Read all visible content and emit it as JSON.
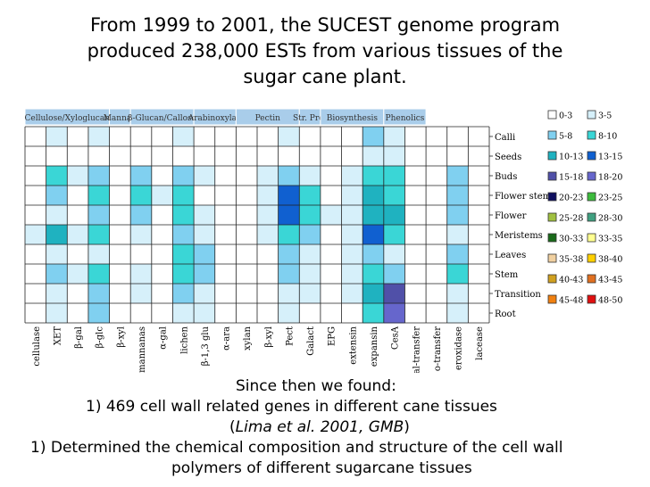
{
  "title_lines": [
    "From 1999 to 2001, the SUCEST genome program",
    "produced 238,000 ESTs from various tissues of the",
    "sugar cane plant."
  ],
  "chart_data": {
    "type": "heatmap",
    "categories_header": [
      {
        "label": "Cellulose/Xyloglucan",
        "span": 4
      },
      {
        "label": "Mannan",
        "span": 1
      },
      {
        "label": "β-Glucan/Callose",
        "span": 3
      },
      {
        "label": "Arabinoxylan",
        "span": 2
      },
      {
        "label": "Pectin",
        "span": 3
      },
      {
        "label": "Str. Prot",
        "span": 1
      },
      {
        "label": "Biosynthesis",
        "span": 3
      },
      {
        "label": "Phenolics",
        "span": 2
      }
    ],
    "x": [
      "cellulase",
      "XET",
      "β-gal",
      "β-glc",
      "β-xyl",
      "mannanas",
      "α-gal",
      "lichen",
      "β-1,3 glu",
      "α-ara",
      "xylan",
      "β-xyl",
      "Pect",
      "Galact",
      "EPG",
      "extensin",
      "expansin",
      "CesA",
      "al-transfer",
      "o-transfer",
      "eroxidase",
      "lacease"
    ],
    "y": [
      "Calli",
      "Seeds",
      "Buds",
      "Flower stem",
      "Flower",
      "Meristems",
      "Leaves",
      "Stem",
      "Transition",
      "Root"
    ],
    "legend": [
      {
        "label": "0-3",
        "color": "#ffffff"
      },
      {
        "label": "3-5",
        "color": "#d6f0fa"
      },
      {
        "label": "5-8",
        "color": "#80d0f0"
      },
      {
        "label": "8-10",
        "color": "#3ad6d6"
      },
      {
        "label": "10-13",
        "color": "#1fb2c0"
      },
      {
        "label": "13-15",
        "color": "#1060d0"
      },
      {
        "label": "15-18",
        "color": "#5050a8"
      },
      {
        "label": "18-20",
        "color": "#6666cc"
      },
      {
        "label": "20-23",
        "color": "#101060"
      },
      {
        "label": "23-25",
        "color": "#3dbb3d"
      },
      {
        "label": "25-28",
        "color": "#a0c040"
      },
      {
        "label": "28-30",
        "color": "#40a080"
      },
      {
        "label": "30-33",
        "color": "#1a6a1a"
      },
      {
        "label": "33-35",
        "color": "#ffff90"
      },
      {
        "label": "35-38",
        "color": "#f0d0a0"
      },
      {
        "label": "38-40",
        "color": "#ffd000"
      },
      {
        "label": "40-43",
        "color": "#d0a020"
      },
      {
        "label": "43-45",
        "color": "#e07020"
      },
      {
        "label": "45-48",
        "color": "#f08010"
      },
      {
        "label": "48-50",
        "color": "#e01010"
      }
    ],
    "values": [
      [
        2,
        4,
        3,
        4,
        1,
        3,
        2,
        4,
        3,
        1,
        1,
        2,
        4,
        3,
        2,
        3,
        6,
        5,
        2,
        2,
        3,
        1
      ],
      [
        1,
        3,
        2,
        3,
        1,
        2,
        1,
        3,
        2,
        1,
        1,
        1,
        3,
        2,
        1,
        2,
        5,
        4,
        1,
        1,
        2,
        1
      ],
      [
        3,
        9,
        4,
        8,
        2,
        7,
        3,
        7,
        4,
        2,
        1,
        4,
        8,
        5,
        3,
        4,
        10,
        9,
        3,
        3,
        6,
        2
      ],
      [
        2,
        6,
        3,
        9,
        2,
        9,
        4,
        9,
        3,
        2,
        1,
        4,
        14,
        9,
        3,
        4,
        11,
        10,
        3,
        3,
        8,
        2
      ],
      [
        3,
        5,
        3,
        7,
        2,
        6,
        3,
        9,
        5,
        2,
        1,
        4,
        15,
        10,
        4,
        4,
        12,
        11,
        3,
        3,
        8,
        2
      ],
      [
        4,
        11,
        4,
        9,
        2,
        4,
        3,
        7,
        5,
        2,
        1,
        4,
        9,
        6,
        3,
        4,
        14,
        9,
        3,
        3,
        4,
        1
      ],
      [
        3,
        4,
        3,
        5,
        2,
        3,
        2,
        9,
        6,
        2,
        1,
        3,
        7,
        5,
        3,
        4,
        6,
        5,
        2,
        2,
        7,
        1
      ],
      [
        2,
        8,
        4,
        10,
        2,
        5,
        3,
        10,
        8,
        2,
        1,
        3,
        6,
        5,
        3,
        4,
        10,
        7,
        3,
        3,
        10,
        2
      ],
      [
        3,
        5,
        3,
        7,
        2,
        4,
        3,
        7,
        5,
        2,
        1,
        3,
        5,
        4,
        3,
        4,
        11,
        16,
        3,
        3,
        5,
        1
      ],
      [
        2,
        4,
        3,
        6,
        2,
        3,
        2,
        5,
        4,
        1,
        1,
        2,
        4,
        3,
        2,
        3,
        9,
        19,
        3,
        3,
        4,
        1
      ]
    ]
  },
  "bottom_text": {
    "line1": "Since then we found:",
    "line2": "1)   469 cell wall related genes in different cane tissues",
    "line3_pre": "(",
    "line3_italic": "Lima et al. 2001, GMB",
    "line3_post": ")",
    "line4": "1)   Determined the chemical composition and structure of the cell wall",
    "line5": "polymers of different sugarcane tissues"
  }
}
